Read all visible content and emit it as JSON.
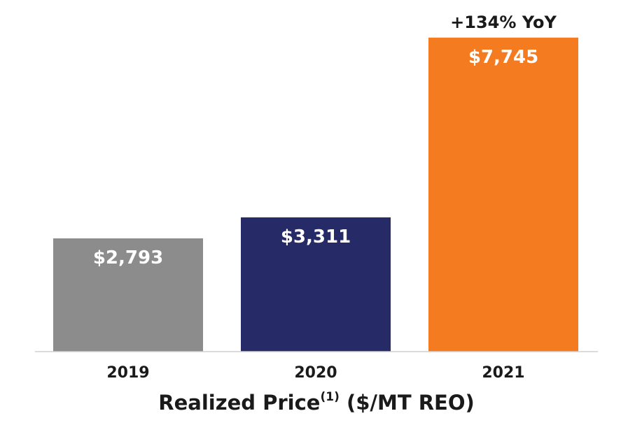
{
  "chart_data": {
    "type": "bar",
    "categories": [
      "2019",
      "2020",
      "2021"
    ],
    "values": [
      2793,
      3311,
      7745
    ],
    "value_labels": [
      "$2,793",
      "$3,311",
      "$7,745"
    ],
    "colors": [
      "#8c8c8c",
      "#262a67",
      "#f47b20"
    ],
    "ylim": [
      0,
      8500
    ],
    "grid": false,
    "legend": "none",
    "annotation": {
      "category": "2021",
      "text": "+134% YoY"
    },
    "title": {
      "main": "Realized Price",
      "superscript": "(1)",
      "suffix": " ($/MT REO)"
    },
    "xlabel": "",
    "ylabel": ""
  }
}
